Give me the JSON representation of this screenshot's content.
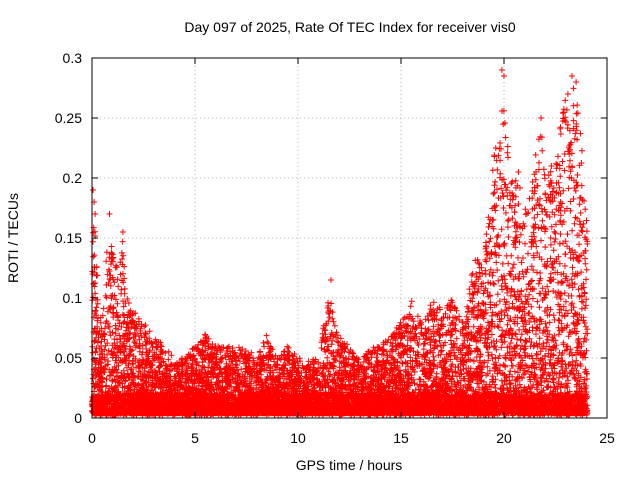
{
  "chart_data": {
    "type": "scatter",
    "title": "Day 097 of 2025, Rate Of TEC Index for receiver vis0",
    "xlabel": "GPS time / hours",
    "ylabel": "ROTI / TECUs",
    "xlim": [
      0,
      25
    ],
    "ylim": [
      0,
      0.3
    ],
    "x_ticks": [
      0,
      5,
      10,
      15,
      20,
      25
    ],
    "x_tick_labels": [
      "0",
      "5",
      "10",
      "15",
      "20",
      "25"
    ],
    "y_ticks": [
      0,
      0.05,
      0.1,
      0.15,
      0.2,
      0.25,
      0.3
    ],
    "y_tick_labels": [
      "0",
      "0.05",
      "0.1",
      "0.15",
      "0.2",
      "0.25",
      "0.3"
    ],
    "grid": true,
    "legend": "none",
    "marker": "plus",
    "color": "#ff0000",
    "envelope": [
      [
        0.0,
        0.19
      ],
      [
        0.1,
        0.17
      ],
      [
        0.3,
        0.11
      ],
      [
        0.5,
        0.08
      ],
      [
        0.8,
        0.17
      ],
      [
        1.0,
        0.14
      ],
      [
        1.3,
        0.12
      ],
      [
        1.5,
        0.15
      ],
      [
        1.7,
        0.1
      ],
      [
        2.0,
        0.09
      ],
      [
        2.5,
        0.08
      ],
      [
        3.0,
        0.07
      ],
      [
        3.5,
        0.06
      ],
      [
        4.0,
        0.05
      ],
      [
        4.5,
        0.05
      ],
      [
        5.0,
        0.06
      ],
      [
        5.5,
        0.07
      ],
      [
        6.0,
        0.06
      ],
      [
        6.5,
        0.06
      ],
      [
        7.0,
        0.06
      ],
      [
        7.5,
        0.06
      ],
      [
        8.0,
        0.05
      ],
      [
        8.5,
        0.07
      ],
      [
        9.0,
        0.05
      ],
      [
        9.5,
        0.06
      ],
      [
        10.0,
        0.05
      ],
      [
        10.5,
        0.05
      ],
      [
        11.0,
        0.05
      ],
      [
        11.5,
        0.11
      ],
      [
        12.0,
        0.07
      ],
      [
        12.5,
        0.06
      ],
      [
        13.0,
        0.05
      ],
      [
        13.5,
        0.06
      ],
      [
        14.0,
        0.06
      ],
      [
        14.5,
        0.07
      ],
      [
        15.0,
        0.08
      ],
      [
        15.5,
        0.1
      ],
      [
        16.0,
        0.08
      ],
      [
        16.5,
        0.1
      ],
      [
        17.0,
        0.09
      ],
      [
        17.5,
        0.1
      ],
      [
        18.0,
        0.08
      ],
      [
        18.5,
        0.13
      ],
      [
        19.0,
        0.14
      ],
      [
        19.5,
        0.22
      ],
      [
        19.8,
        0.24
      ],
      [
        20.0,
        0.29
      ],
      [
        20.3,
        0.2
      ],
      [
        20.7,
        0.2
      ],
      [
        21.0,
        0.17
      ],
      [
        21.5,
        0.22
      ],
      [
        21.8,
        0.25
      ],
      [
        22.0,
        0.2
      ],
      [
        22.5,
        0.22
      ],
      [
        23.0,
        0.27
      ],
      [
        23.3,
        0.28
      ],
      [
        23.6,
        0.26
      ],
      [
        24.0,
        0.18
      ]
    ],
    "highlights": [
      [
        0.05,
        0.19
      ],
      [
        0.1,
        0.18
      ],
      [
        0.15,
        0.17
      ],
      [
        0.85,
        0.17
      ],
      [
        1.5,
        0.155
      ],
      [
        11.6,
        0.115
      ],
      [
        19.9,
        0.29
      ],
      [
        20.0,
        0.285
      ],
      [
        19.6,
        0.225
      ],
      [
        21.8,
        0.25
      ],
      [
        23.3,
        0.285
      ],
      [
        23.5,
        0.28
      ],
      [
        23.1,
        0.27
      ],
      [
        22.3,
        0.21
      ],
      [
        20.7,
        0.205
      ]
    ]
  }
}
